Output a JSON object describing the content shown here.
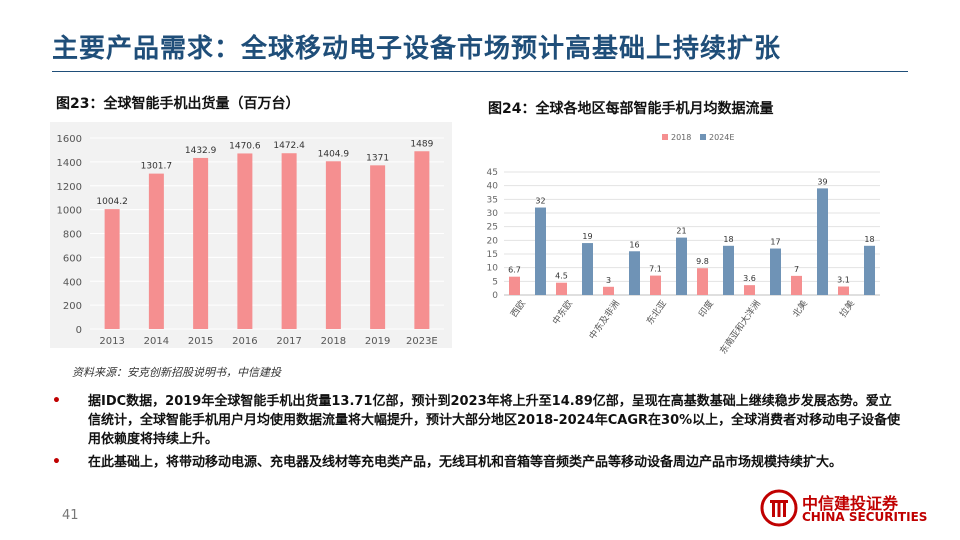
{
  "page": {
    "title": "主要产品需求：全球移动电子设备市场预计高基础上持续扩张",
    "source": "资料来源：安克创新招股说明书，中信建投",
    "bullets": [
      "据IDC数据，2019年全球智能手机出货量13.71亿部，预计到2023年将上升至14.89亿部，呈现在高基数基础上继续稳步发展态势。爱立信统计，全球智能手机用户月均使用数据流量将大幅提升，预计大部分地区2018-2024年CAGR在30%以上，全球消费者对移动电子设备使用依赖度将持续上升。",
      "在此基础上，将带动移动电源、充电器及线材等充电类产品，无线耳机和音箱等音频类产品等移动设备周边产品市场规模持续扩大。"
    ],
    "page_number": "41",
    "logo": {
      "cn": "中信建投证券",
      "en": "CHINA SECURITIES"
    }
  },
  "colors": {
    "title": "#1f4e79",
    "bar_pink": "#f58f90",
    "bar_blue": "#6f93b6",
    "brand_red": "#c00000"
  },
  "chart_data": [
    {
      "type": "bar",
      "title": "图23：全球智能手机出货量（百万台）",
      "categories": [
        "2013",
        "2014",
        "2015",
        "2016",
        "2017",
        "2018",
        "2019",
        "2023E"
      ],
      "values": [
        1004.2,
        1301.7,
        1432.9,
        1470.6,
        1472.4,
        1404.9,
        1371,
        1489
      ],
      "value_labels": [
        "1004.2",
        "1301.7",
        "1432.9",
        "1470.6",
        "1472.4",
        "1404.9",
        "1371",
        "1489"
      ],
      "ylim": [
        0,
        1600
      ],
      "yticks": [
        "0",
        "200",
        "400",
        "600",
        "800",
        "1000",
        "1200",
        "1400",
        "1600"
      ],
      "grid": true,
      "color": "#f58f90"
    },
    {
      "type": "bar",
      "title": "图24：全球各地区每部智能手机月均数据流量",
      "categories": [
        "西欧",
        "中东欧",
        "中东及非洲",
        "东北亚",
        "印度",
        "东南亚和大洋洲",
        "北美",
        "拉美"
      ],
      "series": [
        {
          "name": "2018",
          "values": [
            6.7,
            4.5,
            3,
            7.1,
            9.8,
            3.6,
            7,
            3.1
          ],
          "labels": [
            "6.7",
            "4.5",
            "3",
            "7.1",
            "9.8",
            "3.6",
            "7",
            "3.1"
          ],
          "color": "#f58f90"
        },
        {
          "name": "2024E",
          "values": [
            32,
            19,
            16,
            21,
            18,
            17,
            39,
            18
          ],
          "labels": [
            "32",
            "19",
            "16",
            "21",
            "18",
            "17",
            "39",
            "18"
          ],
          "color": "#6f93b6"
        }
      ],
      "ylim": [
        0,
        45
      ],
      "yticks": [
        "0",
        "5",
        "10",
        "15",
        "20",
        "25",
        "30",
        "35",
        "40",
        "45"
      ],
      "grid": true,
      "legend": "top-center"
    }
  ]
}
